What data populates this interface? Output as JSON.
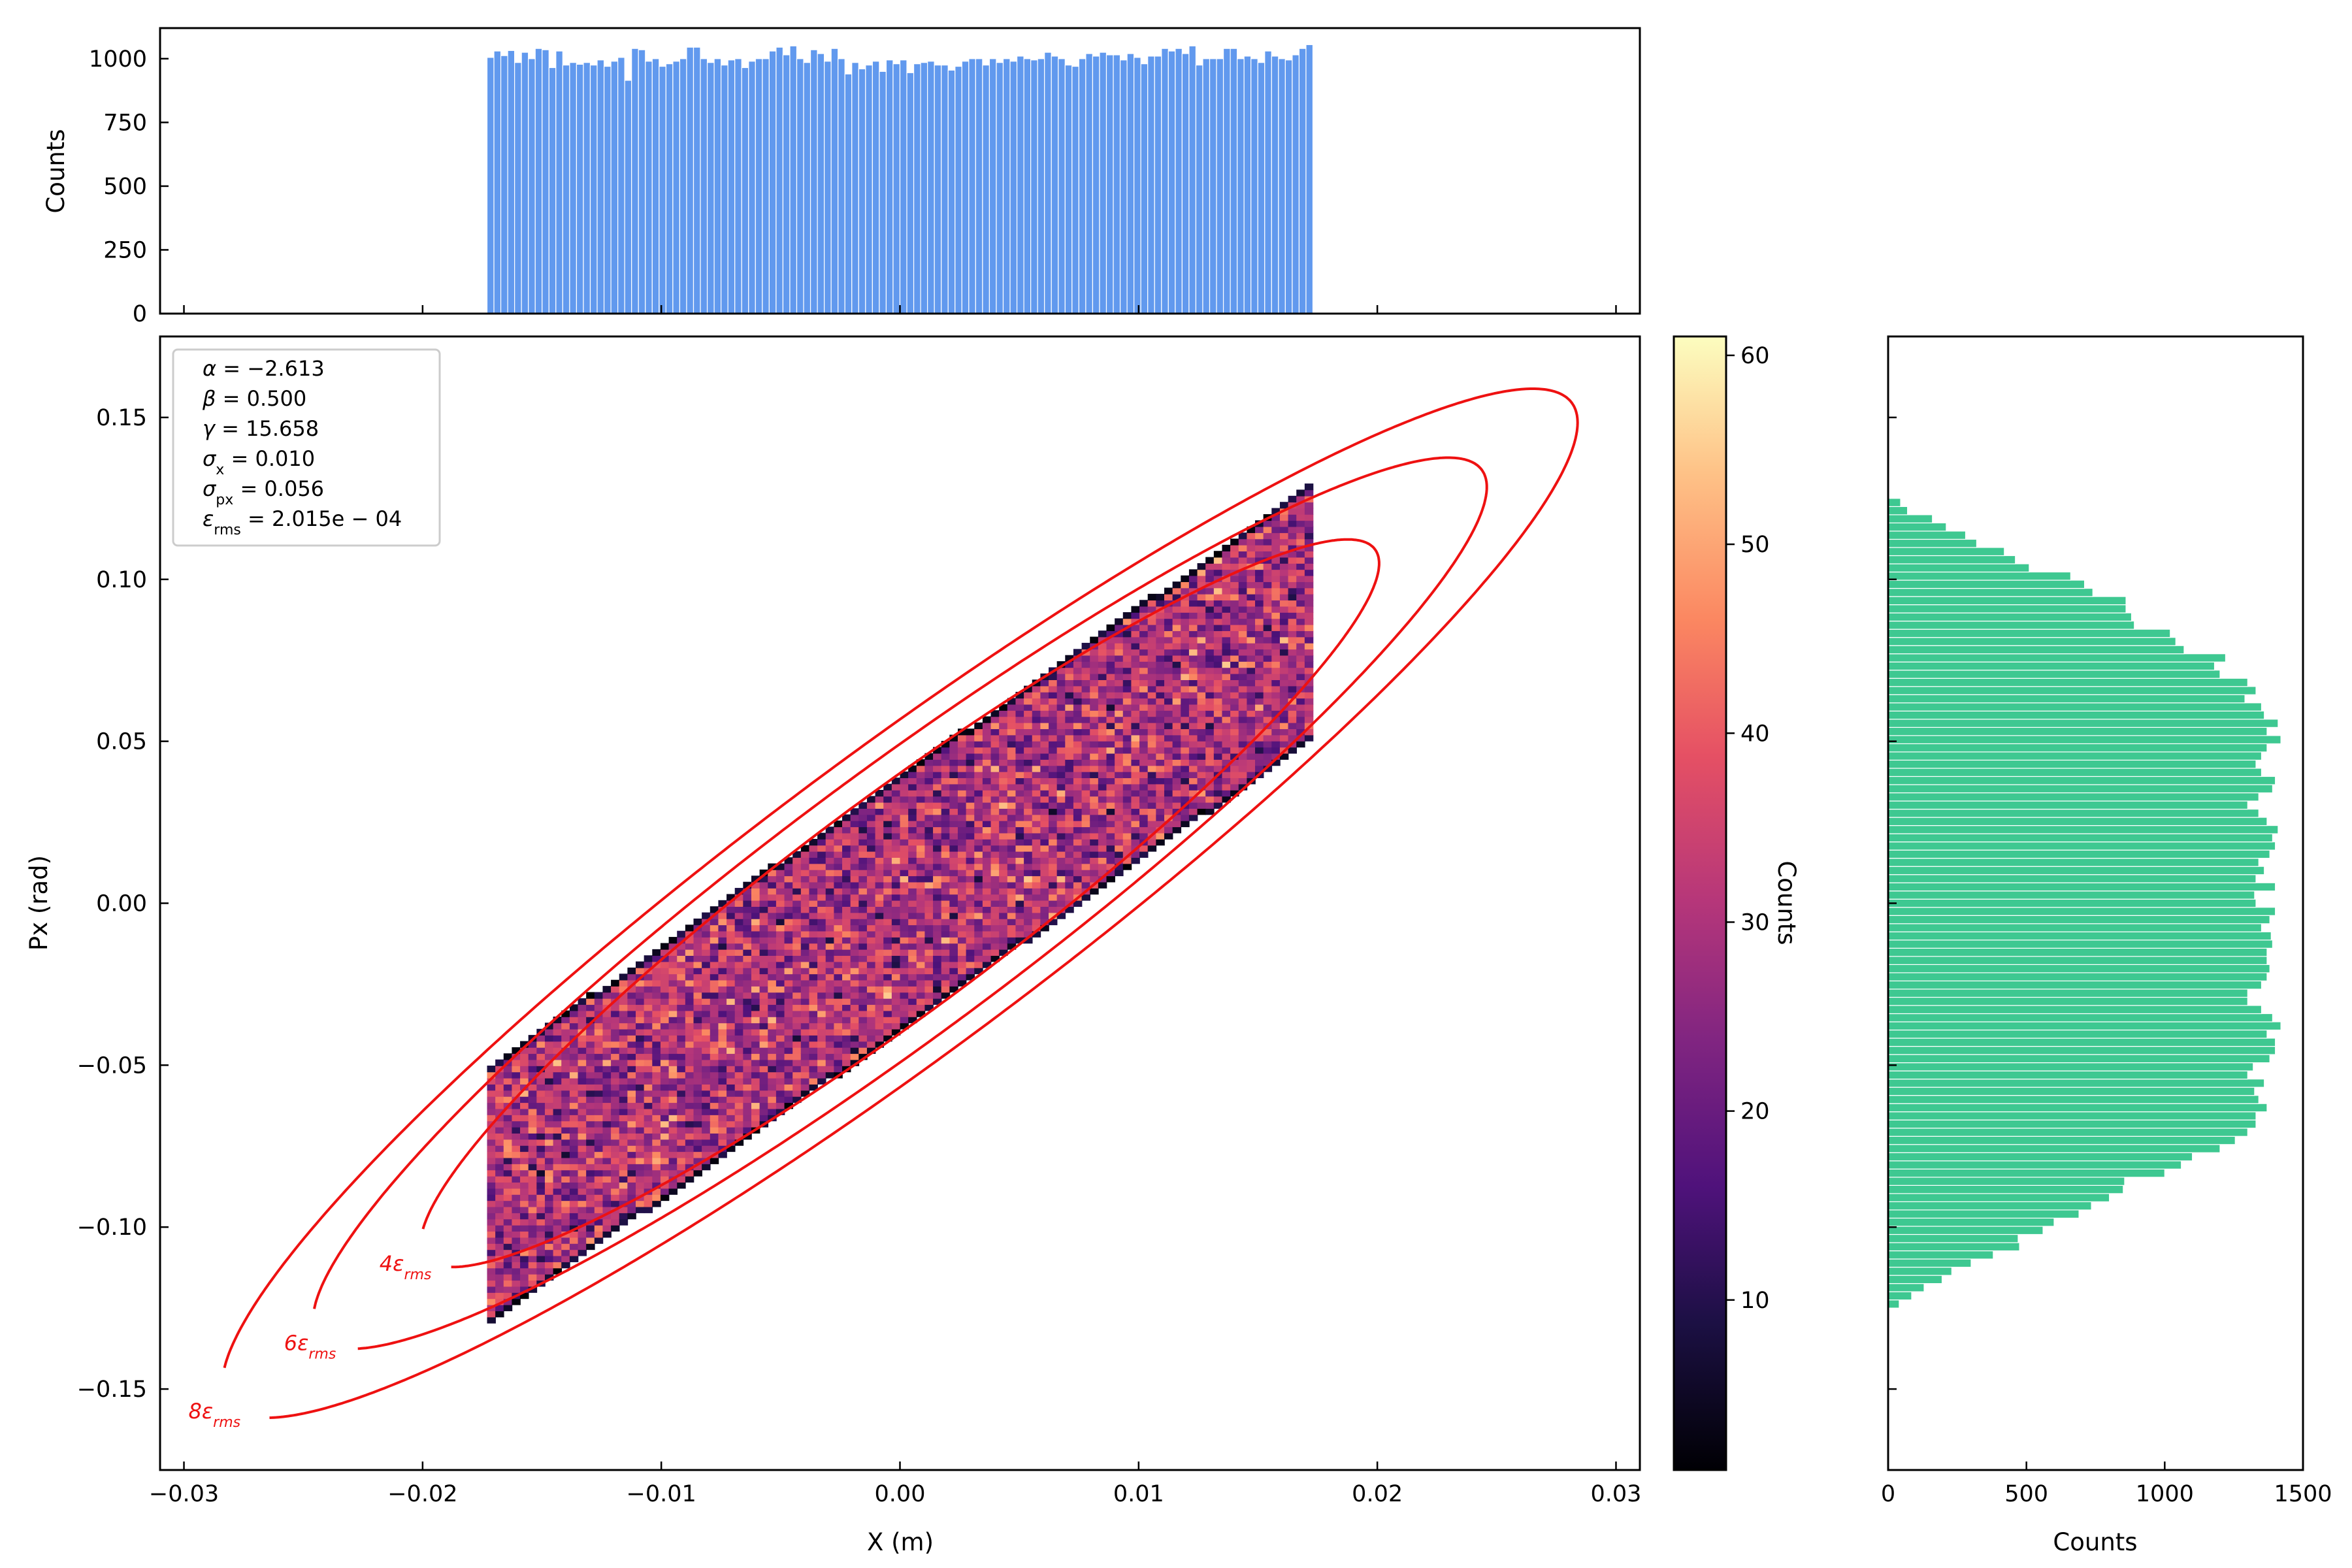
{
  "colors": {
    "top_hist": "#6199ee",
    "right_hist": "#3ec891",
    "contour": "#ee1111"
  },
  "stats": [
    {
      "sym": "α",
      "sub": "",
      "rest": " = −2.613"
    },
    {
      "sym": "β",
      "sub": "",
      "rest": " = 0.500"
    },
    {
      "sym": "γ",
      "sub": "",
      "rest": " = 15.658"
    },
    {
      "sym": "σ",
      "sub": "x",
      "rest": " = 0.010"
    },
    {
      "sym": "σ",
      "sub": "px",
      "rest": " = 0.056"
    },
    {
      "sym": "ε",
      "sub": "rms",
      "rest": " = 2.015e − 04"
    }
  ],
  "chart_data": [
    {
      "id": "phase-space-histogram",
      "type": "heatmap",
      "xlabel": "X (m)",
      "ylabel": "Px (rad)",
      "xlim": [
        -0.031,
        0.031
      ],
      "ylim": [
        -0.175,
        0.175
      ],
      "xticks": [
        -0.03,
        -0.02,
        -0.01,
        0.0,
        0.01,
        0.02,
        0.03
      ],
      "xtick_labels": [
        "−0.03",
        "−0.02",
        "−0.01",
        "0.00",
        "0.01",
        "0.02",
        "0.03"
      ],
      "yticks": [
        -0.15,
        -0.1,
        -0.05,
        0.0,
        0.05,
        0.1,
        0.15
      ],
      "ytick_labels": [
        "−0.15",
        "−0.10",
        "−0.05",
        "0.00",
        "0.05",
        "0.10",
        "0.15"
      ],
      "distribution": {
        "x_range": [
          -0.0173,
          0.0173
        ],
        "band_half_width": 0.0385,
        "slope": 5.2259,
        "bins": 100
      },
      "twiss": {
        "alpha": -2.613,
        "beta": 0.5,
        "gamma": 15.658,
        "emittance": 0.0002015
      },
      "contours": [
        {
          "multiple": 4,
          "label_sym": "4ε",
          "label_sub": "rms",
          "gap": [
            -0.0205,
            -0.1115
          ]
        },
        {
          "multiple": 6,
          "label_sym": "6ε",
          "label_sub": "rms",
          "gap": [
            -0.0245,
            -0.136
          ]
        },
        {
          "multiple": 8,
          "label_sym": "8ε",
          "label_sub": "rms",
          "gap": [
            -0.0285,
            -0.157
          ]
        }
      ],
      "colorbar": {
        "label": "Counts",
        "range": [
          1,
          61
        ],
        "ticks": [
          10,
          20,
          30,
          40,
          50,
          60
        ],
        "tick_labels": [
          "10",
          "20",
          "30",
          "40",
          "50",
          "60"
        ],
        "colormap": "magma"
      }
    },
    {
      "id": "x-projection",
      "type": "bar",
      "orientation": "vertical",
      "ylabel": "Counts",
      "xlim": [
        -0.031,
        0.031
      ],
      "ylim": [
        0,
        1120
      ],
      "yticks": [
        0,
        250,
        500,
        750,
        1000
      ],
      "ytick_labels": [
        "0",
        "250",
        "500",
        "750",
        "1000"
      ],
      "bin_range": [
        -0.0173,
        0.0173
      ],
      "values": [
        1005,
        1030,
        1012,
        1032,
        985,
        1025,
        1000,
        1040,
        1035,
        965,
        1030,
        975,
        985,
        978,
        985,
        975,
        995,
        970,
        990,
        1005,
        915,
        1040,
        1035,
        990,
        1000,
        970,
        980,
        990,
        1000,
        1045,
        1045,
        1000,
        985,
        1000,
        975,
        995,
        1000,
        965,
        990,
        1000,
        1000,
        1030,
        1045,
        1015,
        1050,
        1000,
        985,
        1035,
        1020,
        990,
        1040,
        1000,
        940,
        985,
        960,
        975,
        990,
        950,
        995,
        980,
        995,
        945,
        980,
        985,
        990,
        975,
        975,
        955,
        970,
        990,
        1000,
        1000,
        975,
        1000,
        985,
        1000,
        990,
        1010,
        1000,
        995,
        1000,
        1025,
        1010,
        1000,
        975,
        970,
        1000,
        1020,
        1010,
        1025,
        1015,
        1015,
        995,
        1020,
        1005,
        980,
        1010,
        1010,
        1040,
        1030,
        1040,
        1020,
        1050,
        975,
        1000,
        1000,
        1000,
        1040,
        1040,
        1000,
        1010,
        1000,
        985,
        1030,
        1010,
        1000,
        995,
        1015,
        1040,
        1055
      ]
    },
    {
      "id": "px-projection",
      "type": "bar",
      "orientation": "horizontal",
      "xlabel": "Counts",
      "xlim": [
        0,
        1500
      ],
      "xticks": [
        0,
        500,
        1000,
        1500
      ],
      "xtick_labels": [
        "0",
        "500",
        "1000",
        "1500"
      ],
      "ylim": [
        -0.175,
        0.175
      ],
      "bin_range": [
        -0.125,
        0.125
      ],
      "values": [
        40,
        85,
        130,
        195,
        230,
        300,
        380,
        475,
        470,
        560,
        600,
        690,
        735,
        800,
        850,
        855,
        1000,
        1060,
        1100,
        1200,
        1255,
        1300,
        1330,
        1330,
        1370,
        1340,
        1325,
        1360,
        1300,
        1320,
        1380,
        1400,
        1400,
        1370,
        1420,
        1390,
        1350,
        1300,
        1300,
        1350,
        1370,
        1380,
        1370,
        1370,
        1390,
        1385,
        1350,
        1380,
        1400,
        1330,
        1325,
        1400,
        1330,
        1360,
        1340,
        1380,
        1400,
        1390,
        1410,
        1370,
        1340,
        1300,
        1340,
        1390,
        1400,
        1350,
        1330,
        1350,
        1370,
        1420,
        1370,
        1410,
        1360,
        1350,
        1290,
        1330,
        1300,
        1200,
        1180,
        1220,
        1070,
        1040,
        1020,
        890,
        880,
        860,
        860,
        740,
        710,
        660,
        510,
        460,
        420,
        320,
        280,
        210,
        160,
        70,
        45
      ]
    }
  ]
}
